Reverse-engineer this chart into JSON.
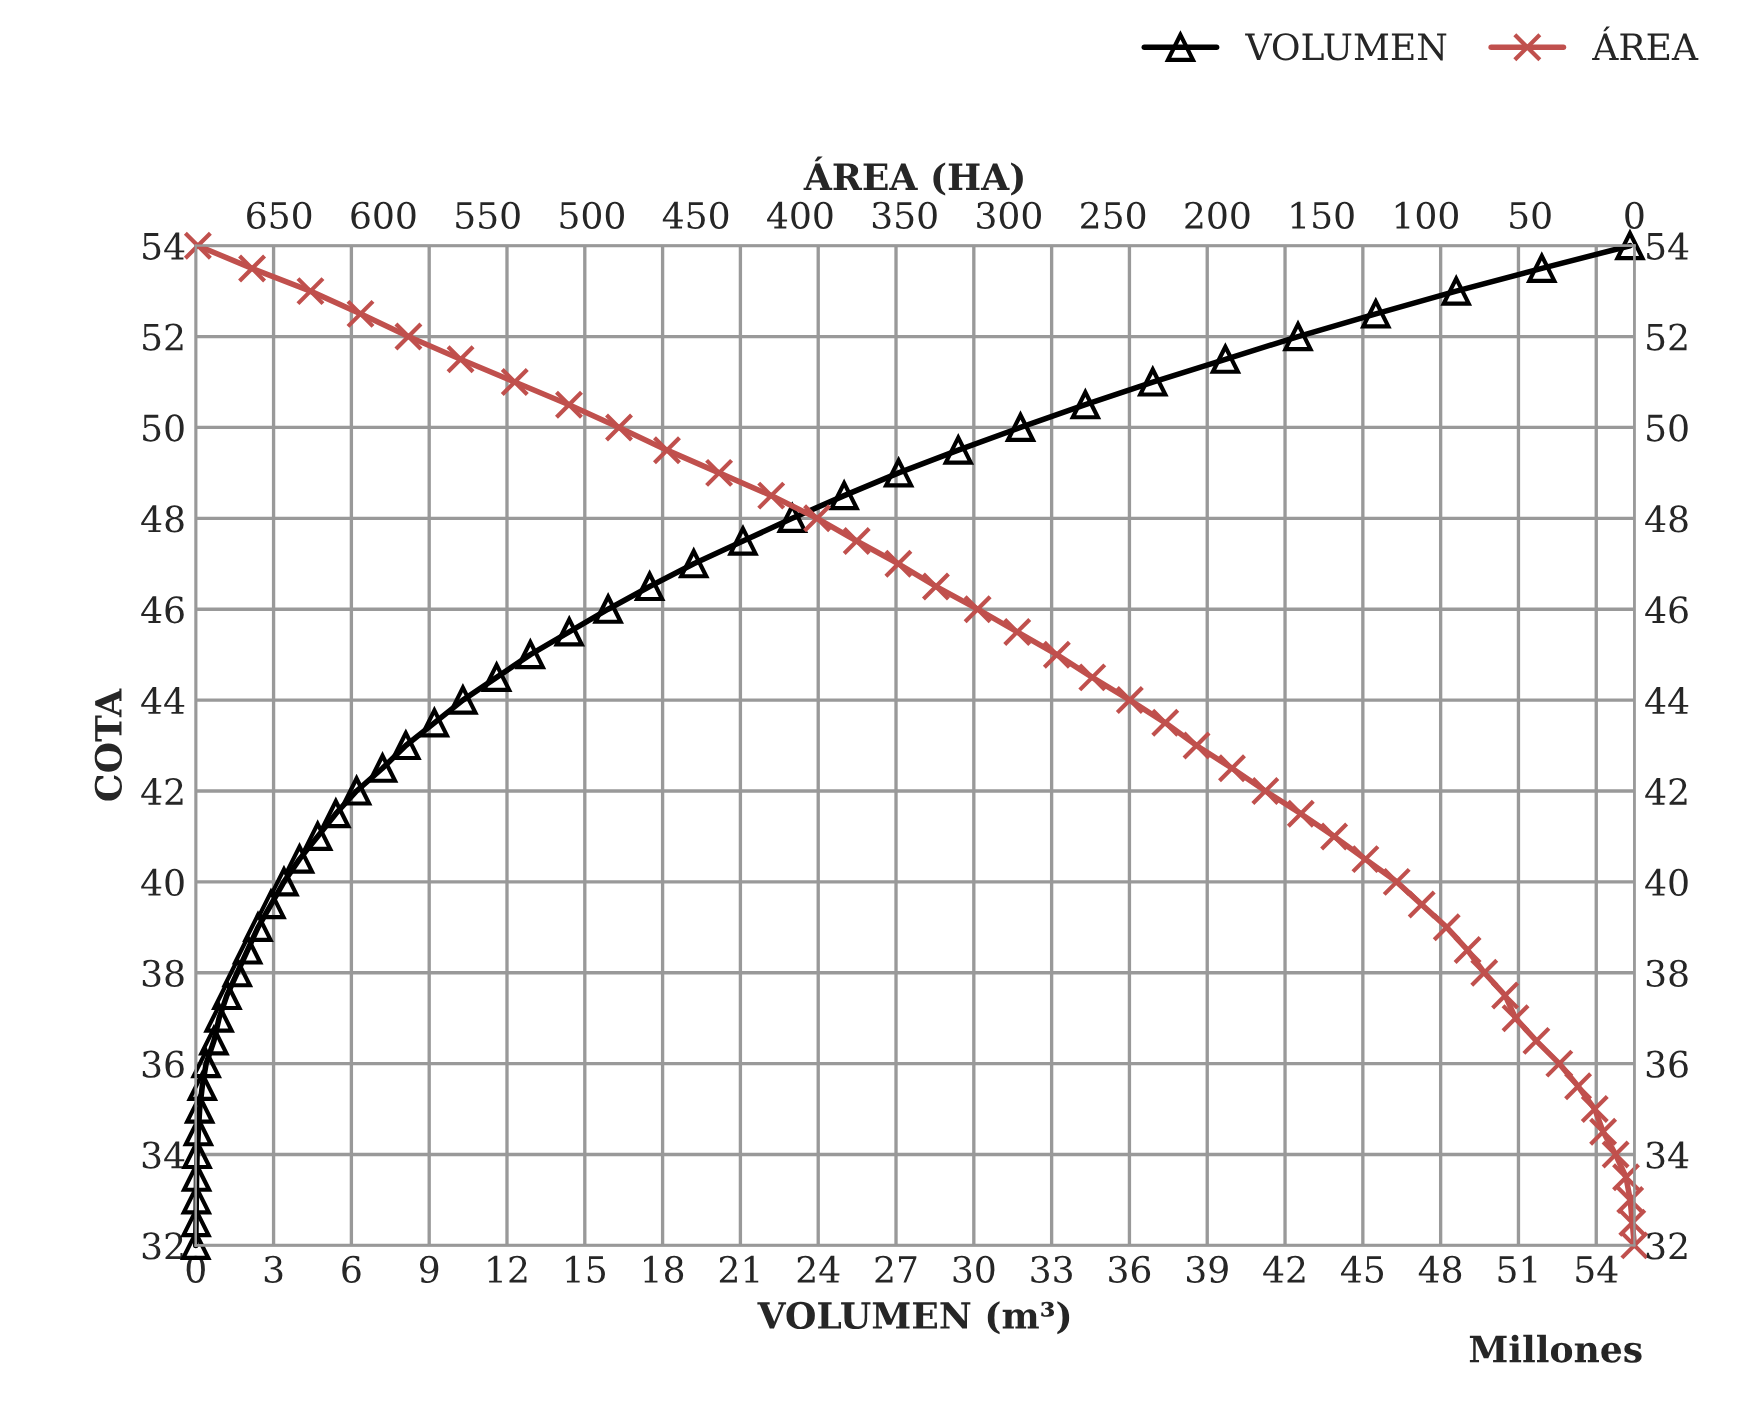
{
  "chart_data": {
    "type": "line",
    "xlabel": "VOLUMEN (m³)",
    "x2label": "ÁREA (HA)",
    "ylabel": "COTA",
    "xlim": [
      0,
      55.47
    ],
    "xticks": [
      0,
      3,
      6,
      9,
      12,
      15,
      18,
      21,
      24,
      27,
      30,
      33,
      36,
      39,
      42,
      45,
      48,
      51,
      54
    ],
    "x2lim": [
      690,
      0
    ],
    "x2ticks": [
      0,
      50,
      100,
      150,
      200,
      250,
      300,
      350,
      400,
      450,
      500,
      550,
      600,
      650
    ],
    "ylim": [
      32,
      54
    ],
    "yticks": [
      32,
      34,
      36,
      38,
      40,
      42,
      44,
      46,
      48,
      50,
      52,
      54
    ],
    "y2lim": [
      32,
      54
    ],
    "y2ticks": [
      32,
      34,
      36,
      38,
      40,
      42,
      44,
      46,
      48,
      50,
      52,
      54
    ],
    "grid": true,
    "legend": "top right",
    "line_style": "solid",
    "annotations": [
      "Millones"
    ],
    "series": [
      {
        "name": "VOLUMEN",
        "color": "#000000",
        "marker": "triangle",
        "x": [
          0,
          0.01,
          0.02,
          0.03,
          0.05,
          0.1,
          0.15,
          0.25,
          0.4,
          0.7,
          0.9,
          1.2,
          1.6,
          2.0,
          2.4,
          2.9,
          3.4,
          4.0,
          4.7,
          5.4,
          6.2,
          7.2,
          8.1,
          9.2,
          10.3,
          11.6,
          12.9,
          14.4,
          15.9,
          17.5,
          19.2,
          21.1,
          23.0,
          25.0,
          27.1,
          29.4,
          31.8,
          34.3,
          36.9,
          39.7,
          42.5,
          45.5,
          48.6,
          51.9,
          55.3
        ],
        "values": [
          32,
          32.5,
          33,
          33.5,
          34,
          34.5,
          35,
          35.5,
          36,
          36.5,
          37,
          37.5,
          38,
          38.5,
          39,
          39.5,
          40,
          40.5,
          41,
          41.5,
          42,
          42.5,
          43,
          43.5,
          44,
          44.5,
          45,
          45.5,
          46,
          46.5,
          47,
          47.5,
          48,
          48.5,
          49,
          49.5,
          50,
          50.5,
          51,
          51.5,
          52,
          52.5,
          53,
          53.5,
          54
        ]
      },
      {
        "name": "ÁREA",
        "color": "#c0504d",
        "marker": "cross",
        "axis": "x2",
        "x": [
          0,
          1,
          2,
          4,
          9,
          15,
          19,
          27,
          36,
          47,
          57,
          62,
          72,
          80,
          90,
          102,
          114,
          129,
          144,
          160,
          177,
          193,
          210,
          225,
          242,
          260,
          277,
          296,
          315,
          335,
          353,
          373,
          392,
          414,
          439,
          464,
          487,
          511,
          537,
          563,
          588,
          611,
          635,
          663,
          689
        ],
        "values": [
          32,
          32.5,
          33,
          33.5,
          34,
          34.5,
          35,
          35.5,
          36,
          36.5,
          37,
          37.5,
          38,
          38.5,
          39,
          39.5,
          40,
          40.5,
          41,
          41.5,
          42,
          42.5,
          43,
          43.5,
          44,
          44.5,
          45,
          45.5,
          46,
          46.5,
          47,
          47.5,
          48,
          48.5,
          49,
          49.5,
          50,
          50.5,
          51,
          51.5,
          52,
          52.5,
          53,
          53.5,
          54
        ]
      }
    ]
  }
}
